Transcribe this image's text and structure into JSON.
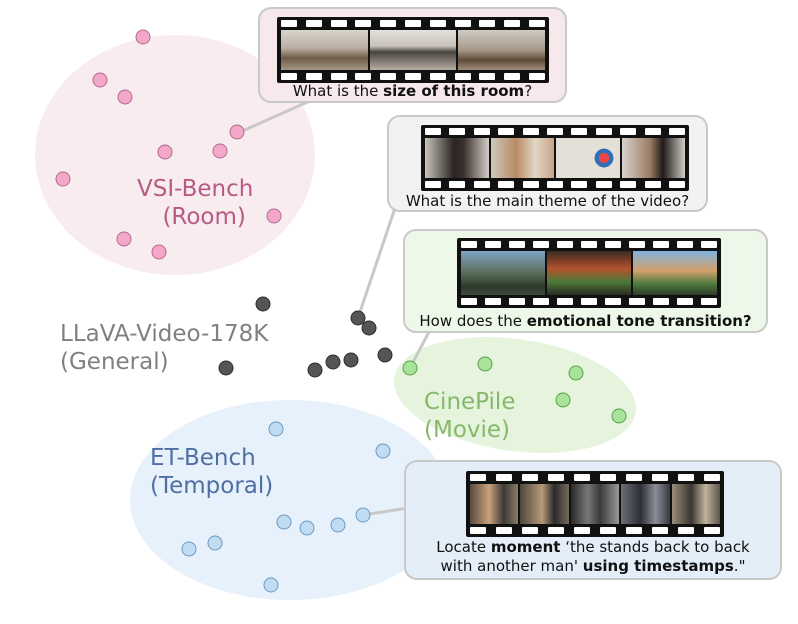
{
  "clusters": [
    {
      "id": "vsi",
      "line1": "VSI-Bench",
      "line2": "(Room)",
      "color": "#b85a86",
      "fill": "#f9ecef"
    },
    {
      "id": "llava",
      "line1": "LLaVA-Video-178K",
      "line2": "(General)",
      "color": "#7a7a7a",
      "fill": "none"
    },
    {
      "id": "cinepile",
      "line1": "CinePile",
      "line2": "(Movie)",
      "color": "#86b86a",
      "fill": "#e8f5df"
    },
    {
      "id": "etbench",
      "line1": "ET-Bench",
      "line2": "(Temporal)",
      "color": "#4f6fa3",
      "fill": "#e6f0fa"
    }
  ],
  "cards": [
    {
      "id": "vsi",
      "caption_parts": [
        {
          "t": "What is the "
        },
        {
          "t": "size of this room",
          "b": true
        },
        {
          "t": "?"
        }
      ],
      "bg": "#f7e8ec"
    },
    {
      "id": "llava",
      "caption_parts": [
        {
          "t": "What is the main theme of the video?"
        }
      ],
      "bg": "#f2f2f2"
    },
    {
      "id": "cinepile",
      "caption_parts": [
        {
          "t": "How does the "
        },
        {
          "t": "emotional tone transition?",
          "b": true
        }
      ],
      "bg": "#eef8e8"
    },
    {
      "id": "etbench",
      "caption_parts": [
        {
          "t": "Locate "
        },
        {
          "t": "moment",
          "b": true
        },
        {
          "t": " ‘the stands back to back"
        },
        {
          "br": true
        },
        {
          "t": "with another man' "
        },
        {
          "t": "using timestamps",
          "b": true
        },
        {
          "t": ".\""
        }
      ],
      "bg": "#e4eef9"
    }
  ],
  "colors": {
    "vsi_point": "#f4a7c8",
    "llava_point": "#555555",
    "cinepile_point": "#a8e39a",
    "etbench_point": "#bfdcf2"
  }
}
